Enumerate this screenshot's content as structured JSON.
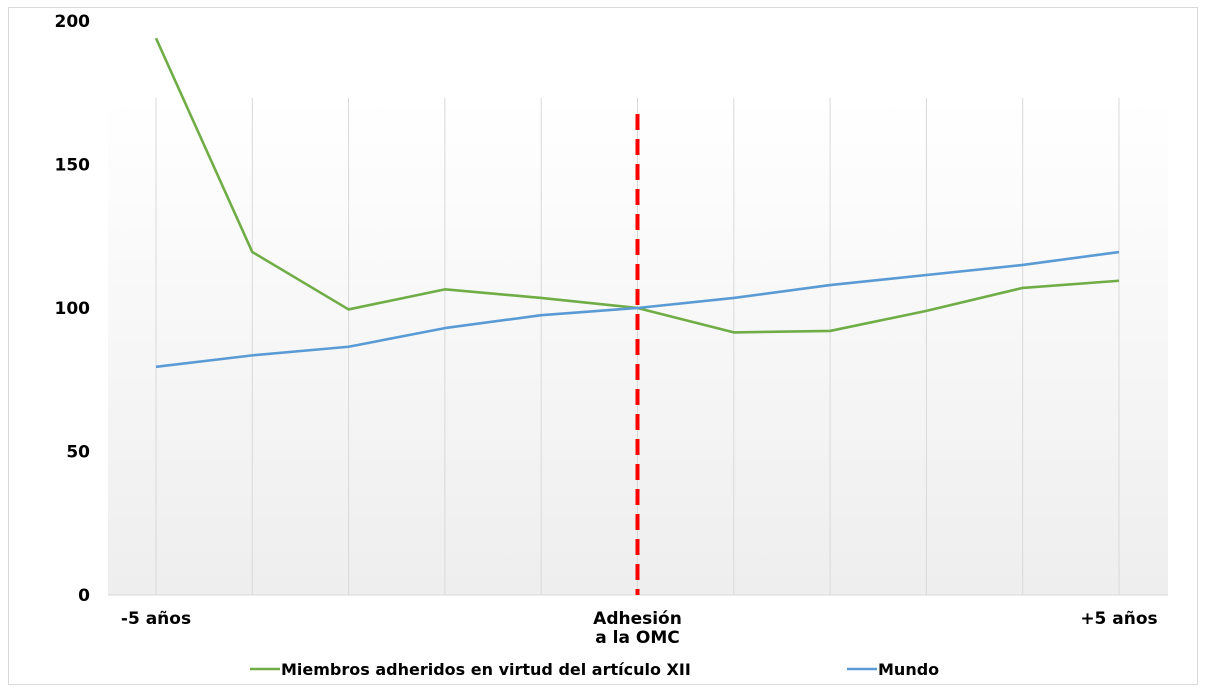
{
  "chart_data": {
    "type": "line",
    "title": "",
    "xlabel": "",
    "ylabel": "",
    "ylim": [
      0,
      200
    ],
    "yticks": [
      0,
      50,
      100,
      150,
      200
    ],
    "x": [
      -5,
      -4,
      -3,
      -2,
      -1,
      0,
      1,
      2,
      3,
      4,
      5
    ],
    "x_tick_labels": [
      {
        "x": -5,
        "lines": [
          "-5 años"
        ]
      },
      {
        "x": 0,
        "lines": [
          "Adhesión",
          "a la OMC"
        ]
      },
      {
        "x": 5,
        "lines": [
          "+5 años"
        ]
      }
    ],
    "series": [
      {
        "name": "Miembros adheridos en virtud del artículo XII",
        "color": "#70ad47",
        "values": [
          194,
          119.5,
          99.5,
          106.5,
          103.5,
          100,
          91.5,
          92,
          99,
          107,
          109.5
        ]
      },
      {
        "name": "Mundo",
        "color": "#5b9bd5",
        "values": [
          79.5,
          83.5,
          86.5,
          93,
          97.5,
          100,
          103.5,
          108,
          111.5,
          115,
          119.5
        ]
      }
    ],
    "reference_line": {
      "x": 0,
      "color": "#ff0000",
      "style": "dashed"
    },
    "grid": "vertical",
    "legend_position": "bottom"
  }
}
